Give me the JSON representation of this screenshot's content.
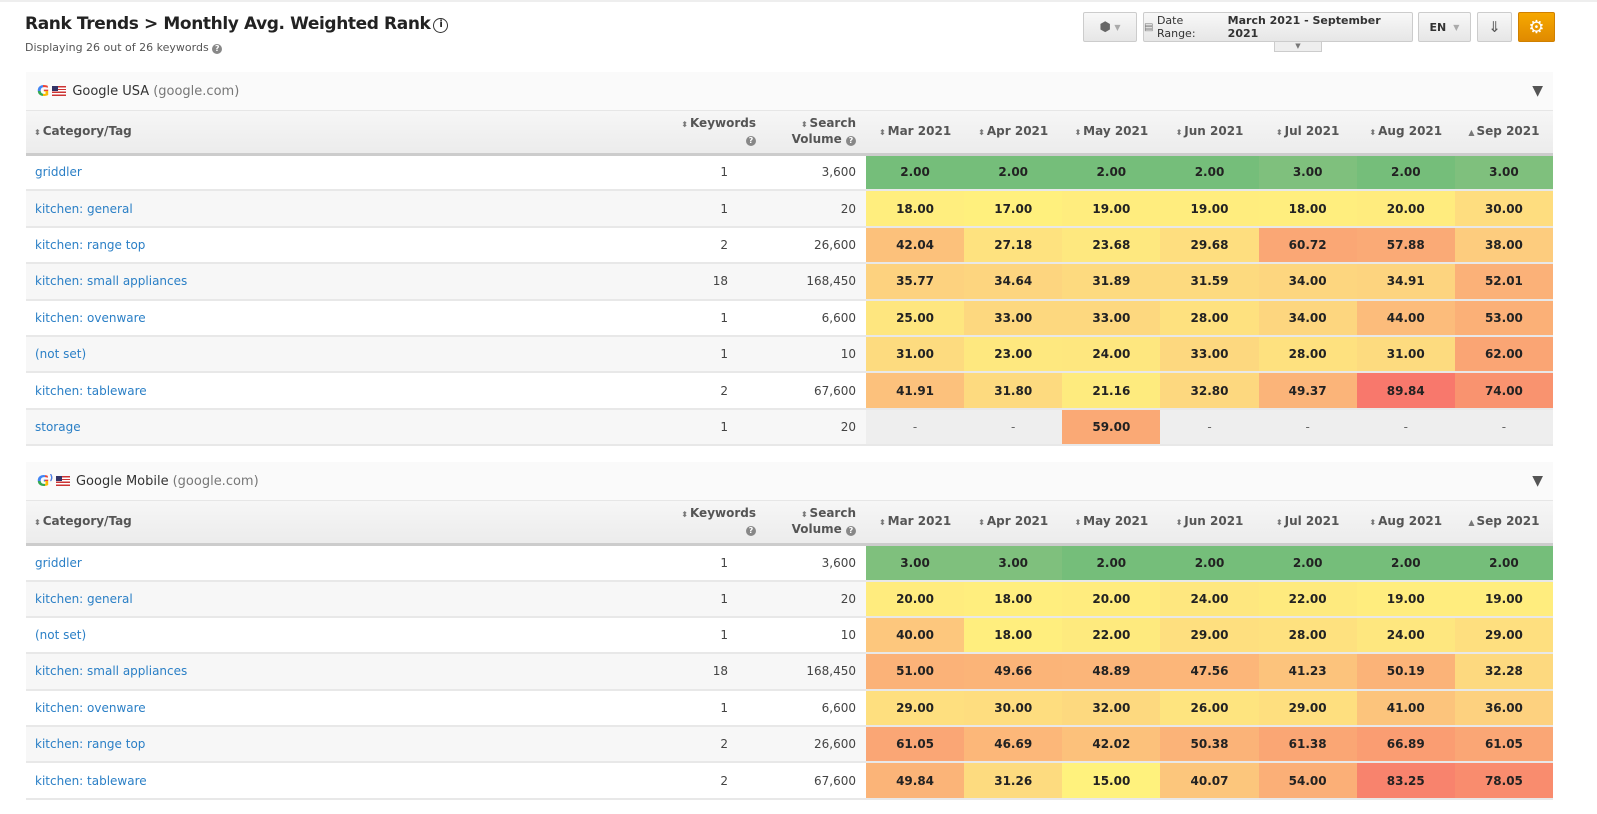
{
  "header": {
    "title": "Rank Trends > Monthly Avg. Weighted Rank",
    "subtitle": "Displaying 26 out of 26 keywords"
  },
  "toolbar": {
    "date_label": "Date Range:",
    "date_value": "March 2021 - September 2021",
    "lang": "EN",
    "icons": [
      "cube-icon",
      "calendar-icon",
      "download-icon",
      "gear-icon"
    ]
  },
  "columns": {
    "category": "Category/Tag",
    "keywords": "Keywords",
    "volume_1": "Search",
    "volume_2": "Volume",
    "months": [
      "Mar 2021",
      "Apr 2021",
      "May 2021",
      "Jun 2021",
      "Jul 2021",
      "Aug 2021",
      "Sep 2021"
    ]
  },
  "colors": {
    "green": "#75be7a",
    "yellow": "#fff27d",
    "orange": "#fcb97a",
    "red": "#f8786c",
    "empty": "#eeeeee"
  },
  "sections": [
    {
      "engine": "Google USA",
      "domain": "(google.com)",
      "rows": [
        {
          "cat": "griddler",
          "kw": "1",
          "vol": "3,600",
          "v": [
            "2.00",
            "2.00",
            "2.00",
            "2.00",
            "3.00",
            "2.00",
            "3.00"
          ]
        },
        {
          "cat": "kitchen: general",
          "kw": "1",
          "vol": "20",
          "v": [
            "18.00",
            "17.00",
            "19.00",
            "19.00",
            "18.00",
            "20.00",
            "30.00"
          ]
        },
        {
          "cat": "kitchen: range top",
          "kw": "2",
          "vol": "26,600",
          "v": [
            "42.04",
            "27.18",
            "23.68",
            "29.68",
            "60.72",
            "57.88",
            "38.00"
          ]
        },
        {
          "cat": "kitchen: small appliances",
          "kw": "18",
          "vol": "168,450",
          "v": [
            "35.77",
            "34.64",
            "31.89",
            "31.59",
            "34.00",
            "34.91",
            "52.01"
          ]
        },
        {
          "cat": "kitchen: ovenware",
          "kw": "1",
          "vol": "6,600",
          "v": [
            "25.00",
            "33.00",
            "33.00",
            "28.00",
            "34.00",
            "44.00",
            "53.00"
          ]
        },
        {
          "cat": "(not set)",
          "kw": "1",
          "vol": "10",
          "v": [
            "31.00",
            "23.00",
            "24.00",
            "33.00",
            "28.00",
            "31.00",
            "62.00"
          ]
        },
        {
          "cat": "kitchen: tableware",
          "kw": "2",
          "vol": "67,600",
          "v": [
            "41.91",
            "31.80",
            "21.16",
            "32.80",
            "49.37",
            "89.84",
            "74.00"
          ]
        },
        {
          "cat": "storage",
          "kw": "1",
          "vol": "20",
          "v": [
            "-",
            "-",
            "59.00",
            "-",
            "-",
            "-",
            "-"
          ]
        }
      ]
    },
    {
      "engine": "Google Mobile",
      "domain": "(google.com)",
      "rows": [
        {
          "cat": "griddler",
          "kw": "1",
          "vol": "3,600",
          "v": [
            "3.00",
            "3.00",
            "2.00",
            "2.00",
            "2.00",
            "2.00",
            "2.00"
          ]
        },
        {
          "cat": "kitchen: general",
          "kw": "1",
          "vol": "20",
          "v": [
            "20.00",
            "18.00",
            "20.00",
            "24.00",
            "22.00",
            "19.00",
            "19.00"
          ]
        },
        {
          "cat": "(not set)",
          "kw": "1",
          "vol": "10",
          "v": [
            "40.00",
            "18.00",
            "22.00",
            "29.00",
            "28.00",
            "24.00",
            "29.00"
          ]
        },
        {
          "cat": "kitchen: small appliances",
          "kw": "18",
          "vol": "168,450",
          "v": [
            "51.00",
            "49.66",
            "48.89",
            "47.56",
            "41.23",
            "50.19",
            "32.28"
          ]
        },
        {
          "cat": "kitchen: ovenware",
          "kw": "1",
          "vol": "6,600",
          "v": [
            "29.00",
            "30.00",
            "32.00",
            "26.00",
            "29.00",
            "41.00",
            "36.00"
          ]
        },
        {
          "cat": "kitchen: range top",
          "kw": "2",
          "vol": "26,600",
          "v": [
            "61.05",
            "46.69",
            "42.02",
            "50.38",
            "61.38",
            "66.89",
            "61.05"
          ]
        },
        {
          "cat": "kitchen: tableware",
          "kw": "2",
          "vol": "67,600",
          "v": [
            "49.84",
            "31.26",
            "15.00",
            "40.07",
            "54.00",
            "83.25",
            "78.05"
          ]
        }
      ]
    }
  ]
}
